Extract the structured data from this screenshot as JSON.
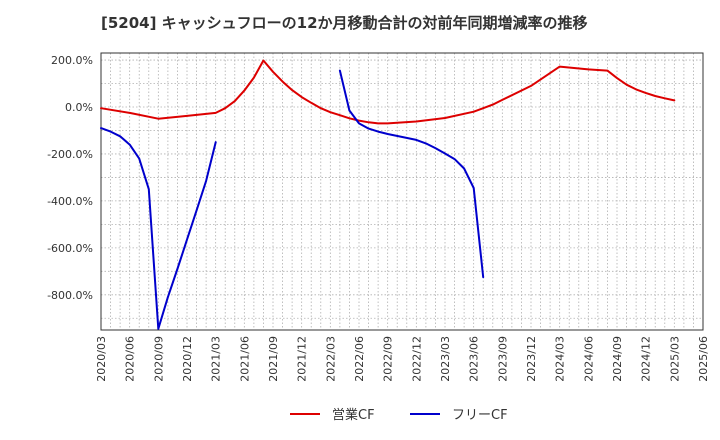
{
  "chart_data": {
    "type": "line",
    "title": "[5204]  キャッシュフローの12か月移動合計の対前年同期増減率の推移",
    "xlabel": "",
    "ylabel": "",
    "ylim": [
      -950,
      230
    ],
    "yticks": [
      200,
      0,
      -200,
      -400,
      -600,
      -800
    ],
    "ytick_labels": [
      "200.0%",
      "0.0%",
      "-200.0%",
      "-400.0%",
      "-600.0%",
      "-800.0%"
    ],
    "xlim": [
      "2020/03",
      "2025/06"
    ],
    "xtick_labels": [
      "2020/03",
      "2020/06",
      "2020/09",
      "2020/12",
      "2021/03",
      "2021/06",
      "2021/09",
      "2021/12",
      "2022/03",
      "2022/06",
      "2022/09",
      "2022/12",
      "2023/03",
      "2023/06",
      "2023/09",
      "2023/12",
      "2024/03",
      "2024/06",
      "2024/09",
      "2024/12",
      "2025/03",
      "2025/06"
    ],
    "grid": true,
    "legend_position": "bottom-center",
    "series": [
      {
        "name": "営業CF",
        "color": "#dd0000",
        "points": [
          [
            "2020/03",
            -5
          ],
          [
            "2020/06",
            -25
          ],
          [
            "2020/09",
            -50
          ],
          [
            "2020/12",
            -38
          ],
          [
            "2021/03",
            -25
          ],
          [
            "2021/04",
            -5
          ],
          [
            "2021/05",
            25
          ],
          [
            "2021/06",
            70
          ],
          [
            "2021/07",
            125
          ],
          [
            "2021/08",
            198
          ],
          [
            "2021/09",
            150
          ],
          [
            "2021/10",
            108
          ],
          [
            "2021/11",
            72
          ],
          [
            "2021/12",
            42
          ],
          [
            "2022/01",
            18
          ],
          [
            "2022/02",
            -5
          ],
          [
            "2022/03",
            -22
          ],
          [
            "2022/04",
            -35
          ],
          [
            "2022/05",
            -48
          ],
          [
            "2022/06",
            -58
          ],
          [
            "2022/07",
            -65
          ],
          [
            "2022/08",
            -70
          ],
          [
            "2022/09",
            -70
          ],
          [
            "2022/12",
            -62
          ],
          [
            "2023/03",
            -47
          ],
          [
            "2023/06",
            -20
          ],
          [
            "2023/07",
            -5
          ],
          [
            "2023/08",
            10
          ],
          [
            "2023/09",
            30
          ],
          [
            "2023/12",
            90
          ],
          [
            "2024/03",
            172
          ],
          [
            "2024/06",
            160
          ],
          [
            "2024/08",
            155
          ],
          [
            "2024/09",
            123
          ],
          [
            "2024/10",
            95
          ],
          [
            "2024/11",
            75
          ],
          [
            "2024/12",
            60
          ],
          [
            "2025/01",
            47
          ],
          [
            "2025/02",
            37
          ],
          [
            "2025/03",
            28
          ]
        ]
      },
      {
        "name": "フリーCF",
        "color": "#0000cc",
        "segments": [
          [
            [
              "2020/03",
              -90
            ],
            [
              "2020/04",
              -105
            ],
            [
              "2020/05",
              -125
            ],
            [
              "2020/06",
              -160
            ],
            [
              "2020/07",
              -220
            ],
            [
              "2020/08",
              -350
            ],
            [
              "2020/09",
              -945
            ],
            [
              "2020/10",
              -810
            ],
            [
              "2020/11",
              -690
            ],
            [
              "2020/12",
              -565
            ],
            [
              "2021/01",
              -440
            ],
            [
              "2021/02",
              -315
            ],
            [
              "2021/03",
              -150
            ]
          ],
          [
            [
              "2022/04",
              155
            ],
            [
              "2022/05",
              -15
            ],
            [
              "2022/06",
              -70
            ],
            [
              "2022/07",
              -92
            ],
            [
              "2022/08",
              -105
            ],
            [
              "2022/09",
              -115
            ],
            [
              "2022/12",
              -140
            ],
            [
              "2023/01",
              -155
            ],
            [
              "2023/02",
              -175
            ],
            [
              "2023/03",
              -198
            ],
            [
              "2023/04",
              -222
            ],
            [
              "2023/05",
              -262
            ],
            [
              "2023/06",
              -345
            ],
            [
              "2023/07",
              -725
            ]
          ]
        ]
      }
    ]
  }
}
